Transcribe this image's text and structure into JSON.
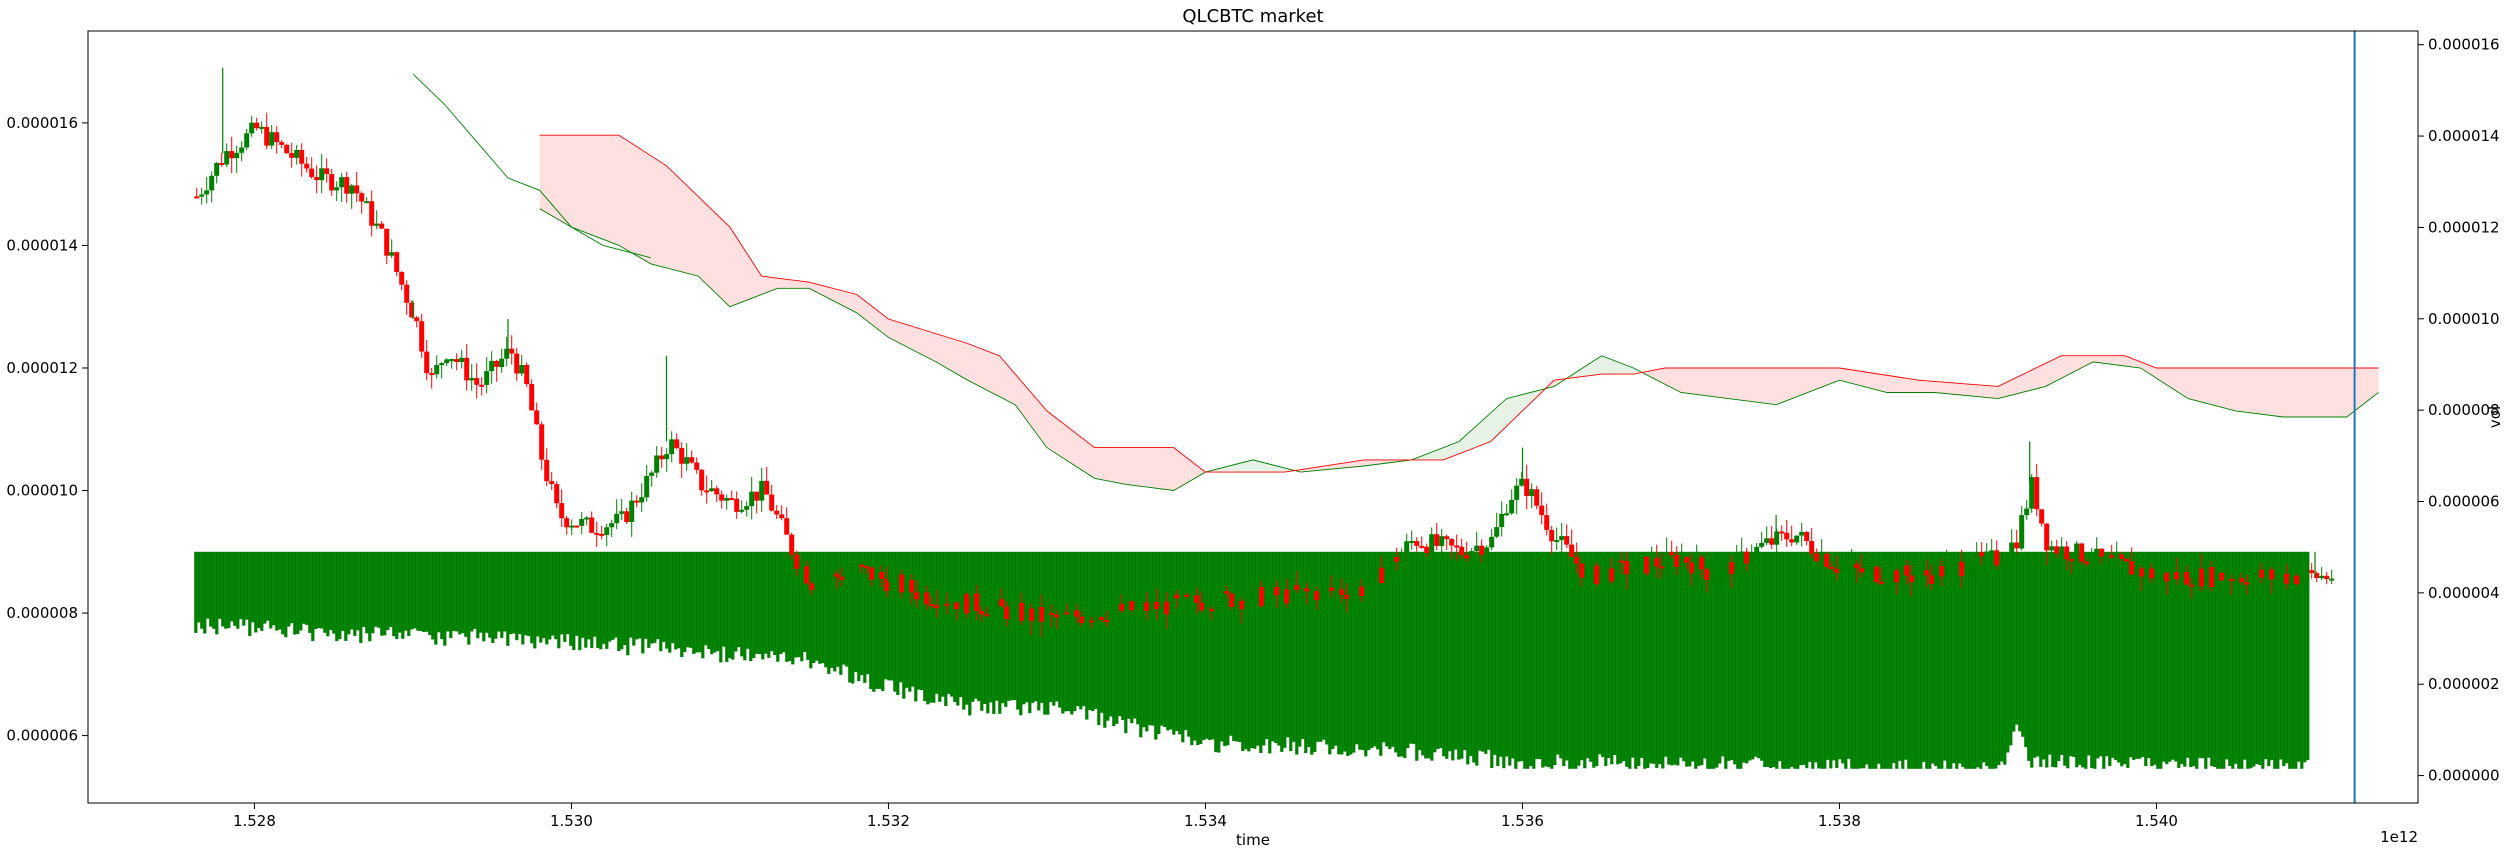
{
  "chart_data": {
    "type": "candlestick",
    "title": "QLCBTC market",
    "xlabel": "time",
    "ylabel": "",
    "y2label": "vol",
    "x_offset_label": "1e12",
    "xlim": [
      1.52695,
      1.54165
    ],
    "ylim": [
      4.9e-06,
      1.75e-05
    ],
    "y2lim": [
      -6e-07,
      1.63e-05
    ],
    "x_ticks": [
      1.528,
      1.53,
      1.532,
      1.534,
      1.536,
      1.538,
      1.54
    ],
    "x_tick_labels": [
      "1.528",
      "1.530",
      "1.532",
      "1.534",
      "1.536",
      "1.538",
      "1.540"
    ],
    "y_ticks": [
      6e-06,
      8e-06,
      1e-05,
      1.2e-05,
      1.4e-05,
      1.6e-05
    ],
    "y_tick_labels": [
      "0.000006",
      "0.000008",
      "0.000010",
      "0.000012",
      "0.000014",
      "0.000016"
    ],
    "y2_ticks": [
      0,
      2e-06,
      4e-06,
      6e-06,
      8e-06,
      1e-05,
      1.2e-05,
      1.4e-05,
      1.6e-05
    ],
    "y2_tick_labels": [
      "0.000000",
      "0.000002",
      "0.000004",
      "0.000006",
      "0.000008",
      "0.000010",
      "0.000012",
      "0.000014",
      "0.000016"
    ],
    "candles": {
      "x_start": 1.52762,
      "x_end": 1.5411,
      "close_path": [
        [
          1.52762,
          1.48e-05
        ],
        [
          1.5278,
          1.55e-05
        ],
        [
          1.528,
          1.59e-05
        ],
        [
          1.5282,
          1.55e-05
        ],
        [
          1.5284,
          1.51e-05
        ],
        [
          1.5286,
          1.5e-05
        ],
        [
          1.5288,
          1.41e-05
        ],
        [
          1.529,
          1.28e-05
        ],
        [
          1.5291,
          1.18e-05
        ],
        [
          1.5292,
          1.23e-05
        ],
        [
          1.5294,
          1.17e-05
        ],
        [
          1.5296,
          1.23e-05
        ],
        [
          1.5297,
          1.17e-05
        ],
        [
          1.5298,
          1.05e-05
        ],
        [
          1.5299,
          9.6e-06
        ],
        [
          1.5301,
          9.4e-06
        ],
        [
          1.5303,
          9.5e-06
        ],
        [
          1.5305,
          1.03e-05
        ],
        [
          1.5306,
          1.08e-05
        ],
        [
          1.5307,
          1.05e-05
        ],
        [
          1.5308,
          1.01e-05
        ],
        [
          1.531,
          9.8e-06
        ],
        [
          1.5312,
          1e-05
        ],
        [
          1.5314,
          8.9e-06
        ],
        [
          1.5315,
          8.5e-06
        ],
        [
          1.5318,
          8.7e-06
        ],
        [
          1.532,
          8.5e-06
        ],
        [
          1.5322,
          8.3e-06
        ],
        [
          1.533,
          7.9e-06
        ],
        [
          1.534,
          8.2e-06
        ],
        [
          1.535,
          8.4e-06
        ],
        [
          1.5353,
          9.2e-06
        ],
        [
          1.5356,
          9e-06
        ],
        [
          1.5358,
          9.2e-06
        ],
        [
          1.5359,
          9.9e-06
        ],
        [
          1.536,
          1.01e-05
        ],
        [
          1.5362,
          9.2e-06
        ],
        [
          1.5364,
          8.6e-06
        ],
        [
          1.537,
          8.9e-06
        ],
        [
          1.5372,
          8.6e-06
        ],
        [
          1.5375,
          9.1e-06
        ],
        [
          1.5377,
          9.3e-06
        ],
        [
          1.538,
          8.7e-06
        ],
        [
          1.5385,
          8.6e-06
        ],
        [
          1.5388,
          8.8e-06
        ],
        [
          1.539,
          8.9e-06
        ],
        [
          1.5391,
          9.2e-06
        ],
        [
          1.5392,
          1.01e-05
        ],
        [
          1.5393,
          9.1e-06
        ],
        [
          1.54,
          8.6e-06
        ],
        [
          1.5411,
          8.6e-06
        ]
      ],
      "spikes": [
        [
          1.5278,
          1.69e-05
        ],
        [
          1.529,
          1.31e-05
        ],
        [
          1.5296,
          1.28e-05
        ],
        [
          1.5306,
          1.22e-05
        ],
        [
          1.532,
          8.9e-06
        ],
        [
          1.536,
          1.07e-05
        ],
        [
          1.5376,
          9.6e-06
        ],
        [
          1.5392,
          1.08e-05
        ],
        [
          1.541,
          9e-06
        ]
      ]
    },
    "volume": {
      "x_start": 1.52762,
      "x_end": 1.54096,
      "top": 4.9e-06,
      "bottom_profile": [
        [
          1.52762,
          3.5e-06
        ],
        [
          1.5285,
          3.3e-06
        ],
        [
          1.5295,
          3.2e-06
        ],
        [
          1.5305,
          3e-06
        ],
        [
          1.5315,
          2.7e-06
        ],
        [
          1.532,
          2.1e-06
        ],
        [
          1.5325,
          1.7e-06
        ],
        [
          1.533,
          1.7e-06
        ],
        [
          1.534,
          9e-07
        ],
        [
          1.535,
          8e-07
        ],
        [
          1.536,
          5e-07
        ],
        [
          1.538,
          4e-07
        ],
        [
          1.539,
          3e-07
        ],
        [
          1.5391,
          1.2e-06
        ],
        [
          1.5392,
          5e-07
        ],
        [
          1.54,
          4e-07
        ],
        [
          1.54096,
          4e-07
        ]
      ]
    },
    "ichimoku": {
      "lagging_line": [
        [
          1.529,
          1.68e-05
        ],
        [
          1.5292,
          1.63e-05
        ],
        [
          1.5294,
          1.57e-05
        ],
        [
          1.5296,
          1.51e-05
        ],
        [
          1.5298,
          1.49e-05
        ],
        [
          1.53,
          1.43e-05
        ],
        [
          1.5302,
          1.4e-05
        ],
        [
          1.5305,
          1.38e-05
        ]
      ],
      "span_a": [
        [
          1.5298,
          1.46e-05
        ],
        [
          1.53,
          1.43e-05
        ],
        [
          1.5303,
          1.4e-05
        ],
        [
          1.5305,
          1.37e-05
        ],
        [
          1.5308,
          1.35e-05
        ],
        [
          1.531,
          1.3e-05
        ],
        [
          1.5313,
          1.33e-05
        ],
        [
          1.5315,
          1.33e-05
        ],
        [
          1.5318,
          1.29e-05
        ],
        [
          1.532,
          1.25e-05
        ],
        [
          1.5323,
          1.21e-05
        ],
        [
          1.5325,
          1.18e-05
        ],
        [
          1.5328,
          1.14e-05
        ],
        [
          1.533,
          1.07e-05
        ],
        [
          1.5333,
          1.02e-05
        ],
        [
          1.5335,
          1.01e-05
        ],
        [
          1.5338,
          1e-05
        ],
        [
          1.534,
          1.03e-05
        ],
        [
          1.5343,
          1.05e-05
        ],
        [
          1.5346,
          1.03e-05
        ],
        [
          1.535,
          1.04e-05
        ],
        [
          1.5353,
          1.05e-05
        ],
        [
          1.5356,
          1.08e-05
        ],
        [
          1.5359,
          1.15e-05
        ],
        [
          1.5362,
          1.17e-05
        ],
        [
          1.5365,
          1.22e-05
        ],
        [
          1.5367,
          1.2e-05
        ],
        [
          1.537,
          1.16e-05
        ],
        [
          1.5373,
          1.15e-05
        ],
        [
          1.5376,
          1.14e-05
        ],
        [
          1.538,
          1.18e-05
        ],
        [
          1.5383,
          1.16e-05
        ],
        [
          1.5386,
          1.16e-05
        ],
        [
          1.539,
          1.15e-05
        ],
        [
          1.5393,
          1.17e-05
        ],
        [
          1.5396,
          1.21e-05
        ],
        [
          1.5399,
          1.2e-05
        ],
        [
          1.5402,
          1.15e-05
        ],
        [
          1.5405,
          1.13e-05
        ],
        [
          1.5408,
          1.12e-05
        ],
        [
          1.5412,
          1.12e-05
        ],
        [
          1.5414,
          1.16e-05
        ]
      ],
      "span_b": [
        [
          1.5298,
          1.58e-05
        ],
        [
          1.5303,
          1.58e-05
        ],
        [
          1.5306,
          1.53e-05
        ],
        [
          1.5308,
          1.48e-05
        ],
        [
          1.531,
          1.43e-05
        ],
        [
          1.5312,
          1.35e-05
        ],
        [
          1.5315,
          1.34e-05
        ],
        [
          1.5318,
          1.32e-05
        ],
        [
          1.532,
          1.28e-05
        ],
        [
          1.5325,
          1.24e-05
        ],
        [
          1.5327,
          1.22e-05
        ],
        [
          1.533,
          1.13e-05
        ],
        [
          1.5333,
          1.07e-05
        ],
        [
          1.5338,
          1.07e-05
        ],
        [
          1.534,
          1.03e-05
        ],
        [
          1.5345,
          1.03e-05
        ],
        [
          1.535,
          1.05e-05
        ],
        [
          1.5355,
          1.05e-05
        ],
        [
          1.5358,
          1.08e-05
        ],
        [
          1.5362,
          1.18e-05
        ],
        [
          1.5365,
          1.19e-05
        ],
        [
          1.5367,
          1.19e-05
        ],
        [
          1.5369,
          1.2e-05
        ],
        [
          1.538,
          1.2e-05
        ],
        [
          1.5385,
          1.18e-05
        ],
        [
          1.539,
          1.17e-05
        ],
        [
          1.5394,
          1.22e-05
        ],
        [
          1.5398,
          1.22e-05
        ],
        [
          1.54,
          1.2e-05
        ],
        [
          1.5414,
          1.2e-05
        ]
      ]
    },
    "vertical_line_x": 1.54125,
    "colors": {
      "up": "#008000",
      "down": "#ff0000",
      "span_a_line": "#008000",
      "span_b_line": "#ff0000",
      "cloud_bull": "#e6f2e6",
      "cloud_bear": "#ffe0e0",
      "vline": "#1f77b4",
      "axis": "#000000"
    }
  }
}
